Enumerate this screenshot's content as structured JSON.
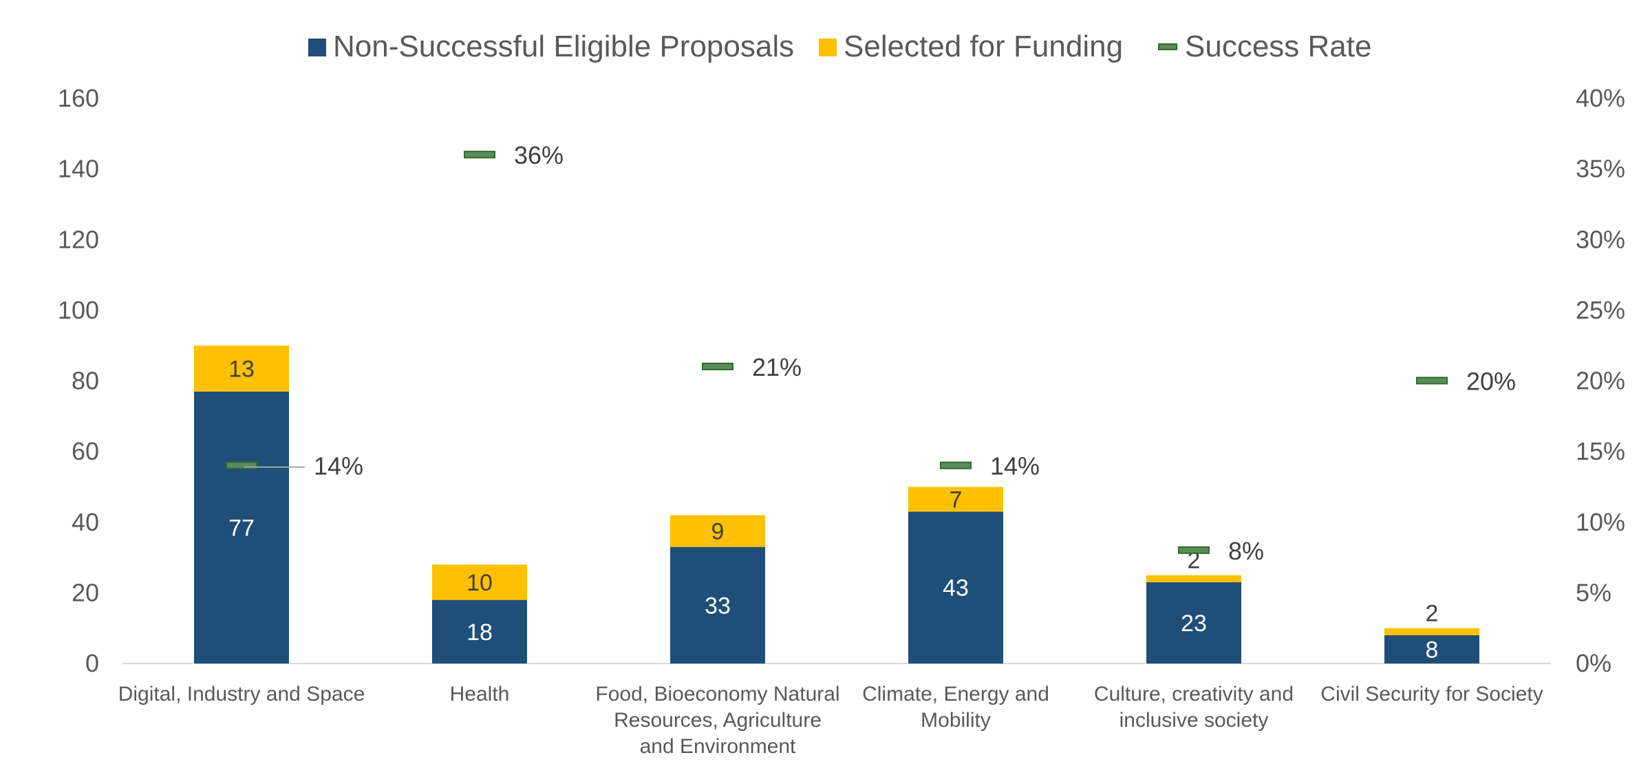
{
  "chart_data": {
    "type": "bar",
    "stacked": true,
    "categories": [
      [
        "Digital, Industry and Space"
      ],
      [
        "Health"
      ],
      [
        "Food, Bioeconomy Natural",
        "Resources, Agriculture",
        "and Environment"
      ],
      [
        "Climate, Energy and",
        "Mobility"
      ],
      [
        "Culture, creativity and",
        "inclusive society"
      ],
      [
        "Civil Security for Society"
      ]
    ],
    "series": [
      {
        "name": "Non-Successful Eligible Proposals",
        "values": [
          77,
          18,
          33,
          43,
          23,
          8
        ],
        "labels": [
          "77",
          "18",
          "33",
          "43",
          "23",
          "8"
        ],
        "color": "#1f4e79",
        "label_color": "#ffffff"
      },
      {
        "name": "Selected for Funding",
        "values": [
          13,
          10,
          9,
          7,
          2,
          2
        ],
        "labels": [
          "13",
          "10",
          "9",
          "7",
          "2",
          "2"
        ],
        "color": "#ffc000",
        "label_color": "#404040"
      }
    ],
    "rate_series": {
      "name": "Success Rate",
      "values": [
        0.14,
        0.36,
        0.21,
        0.14,
        0.08,
        0.2
      ],
      "labels": [
        "14%",
        "36%",
        "21%",
        "14%",
        "8%",
        "20%"
      ],
      "marker_color": "#5b8c5a",
      "marker_border": "#2e6b2e",
      "axis": "right"
    },
    "ylim": [
      0,
      160
    ],
    "yticks": [
      "0",
      "20",
      "40",
      "60",
      "80",
      "100",
      "120",
      "140",
      "160"
    ],
    "y2lim": [
      0,
      0.4
    ],
    "y2ticks": [
      "0%",
      "5%",
      "10%",
      "15%",
      "20%",
      "25%",
      "30%",
      "35%",
      "40%"
    ],
    "legend_position": "top",
    "grid": false
  }
}
